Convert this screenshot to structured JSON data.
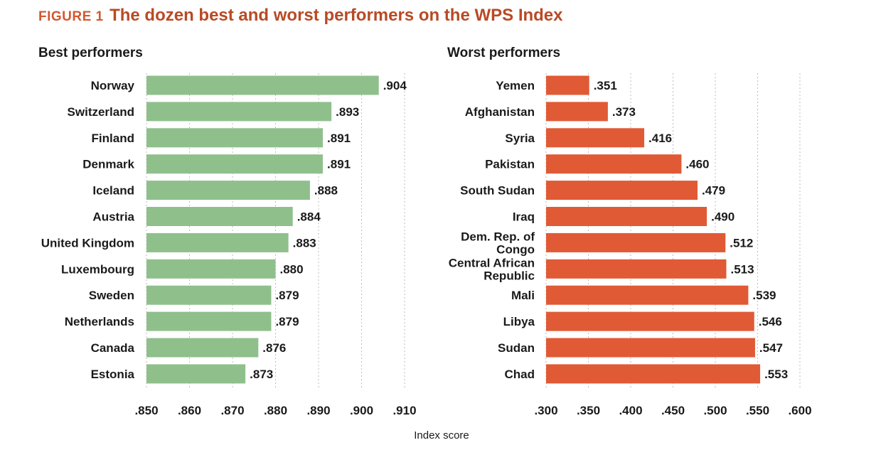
{
  "figure_label": "FIGURE 1",
  "title": "The dozen best and worst performers on the WPS Index",
  "xlabel": "Index score",
  "chart_data": [
    {
      "type": "bar",
      "orientation": "horizontal",
      "title": "Best performers",
      "color": "#8fc08c",
      "xlim": [
        0.85,
        0.91
      ],
      "ticks": [
        0.85,
        0.86,
        0.87,
        0.88,
        0.89,
        0.9,
        0.91
      ],
      "tick_labels": [
        ".850",
        ".860",
        ".870",
        ".880",
        ".890",
        ".900",
        ".910"
      ],
      "categories": [
        "Norway",
        "Switzerland",
        "Finland",
        "Denmark",
        "Iceland",
        "Austria",
        "United Kingdom",
        "Luxembourg",
        "Sweden",
        "Netherlands",
        "Canada",
        "Estonia"
      ],
      "values": [
        0.904,
        0.893,
        0.891,
        0.891,
        0.888,
        0.884,
        0.883,
        0.88,
        0.879,
        0.879,
        0.876,
        0.873
      ],
      "value_labels": [
        ".904",
        ".893",
        ".891",
        ".891",
        ".888",
        ".884",
        ".883",
        ".880",
        ".879",
        ".879",
        ".876",
        ".873"
      ]
    },
    {
      "type": "bar",
      "orientation": "horizontal",
      "title": "Worst performers",
      "color": "#e05a36",
      "xlim": [
        0.3,
        0.6
      ],
      "ticks": [
        0.3,
        0.35,
        0.4,
        0.45,
        0.5,
        0.55,
        0.6
      ],
      "tick_labels": [
        ".300",
        ".350",
        ".400",
        ".450",
        ".500",
        ".550",
        ".600"
      ],
      "categories": [
        "Yemen",
        "Afghanistan",
        "Syria",
        "Pakistan",
        "South Sudan",
        "Iraq",
        "Dem. Rep. of\nCongo",
        "Central African\nRepublic",
        "Mali",
        "Libya",
        "Sudan",
        "Chad"
      ],
      "values": [
        0.351,
        0.373,
        0.416,
        0.46,
        0.479,
        0.49,
        0.512,
        0.513,
        0.539,
        0.546,
        0.547,
        0.553
      ],
      "value_labels": [
        ".351",
        ".373",
        ".416",
        ".460",
        ".479",
        ".490",
        ".512",
        ".513",
        ".539",
        ".546",
        ".547",
        ".553"
      ]
    }
  ]
}
